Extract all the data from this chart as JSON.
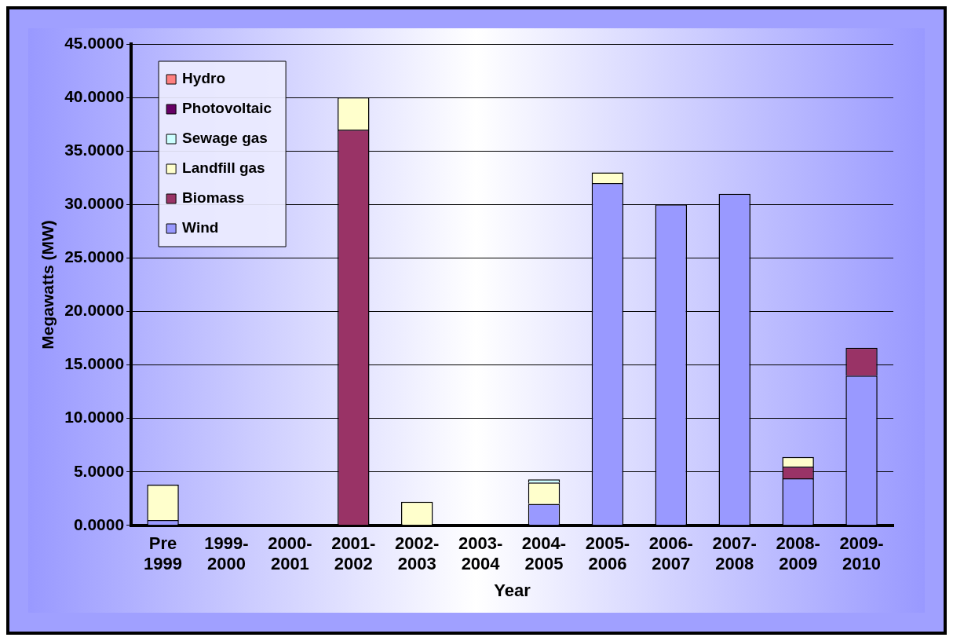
{
  "chart_data": {
    "type": "bar",
    "stacked": true,
    "xlabel": "Year",
    "ylabel": "Megawatts (MW)",
    "categories": [
      "Pre 1999",
      "1999-2000",
      "2000-2001",
      "2001-2002",
      "2002-2003",
      "2003-2004",
      "2004-2005",
      "2005-2006",
      "2006-2007",
      "2007-2008",
      "2008-2009",
      "2009-2010"
    ],
    "series": [
      {
        "name": "Wind",
        "color": "#9999ff",
        "values": [
          0.5,
          0,
          0,
          0,
          0,
          0,
          2,
          32,
          30,
          31,
          4.4,
          14
        ]
      },
      {
        "name": "Biomass",
        "color": "#993366",
        "values": [
          0,
          0,
          0,
          37,
          0,
          0,
          0,
          0,
          0,
          0,
          1.1,
          2.6
        ]
      },
      {
        "name": "Landfill gas",
        "color": "#ffffcc",
        "values": [
          3.3,
          0,
          0,
          3,
          2.2,
          0,
          2,
          1,
          0,
          0,
          0.9,
          0
        ]
      },
      {
        "name": "Sewage gas",
        "color": "#ccffff",
        "values": [
          0,
          0,
          0,
          0,
          0,
          0,
          0.3,
          0,
          0,
          0,
          0,
          0
        ]
      },
      {
        "name": "Photovoltaic",
        "color": "#660066",
        "values": [
          0,
          0,
          0,
          0,
          0,
          0,
          0,
          0,
          0,
          0,
          0,
          0
        ]
      },
      {
        "name": "Hydro",
        "color": "#ff8080",
        "values": [
          0,
          0,
          0,
          0,
          0,
          0,
          0,
          0,
          0,
          0,
          0,
          0
        ]
      }
    ],
    "ylim": [
      0,
      45
    ],
    "yticks": [
      {
        "value": 0,
        "label": "0.0000"
      },
      {
        "value": 5,
        "label": "5.0000"
      },
      {
        "value": 10,
        "label": "10.0000"
      },
      {
        "value": 15,
        "label": "15.0000"
      },
      {
        "value": 20,
        "label": "20.0000"
      },
      {
        "value": 25,
        "label": "25.0000"
      },
      {
        "value": 30,
        "label": "30.0000"
      },
      {
        "value": 35,
        "label": "35.0000"
      },
      {
        "value": 40,
        "label": "40.0000"
      },
      {
        "value": 45,
        "label": "45.0000"
      }
    ],
    "grid": "y",
    "legend": "top left"
  }
}
